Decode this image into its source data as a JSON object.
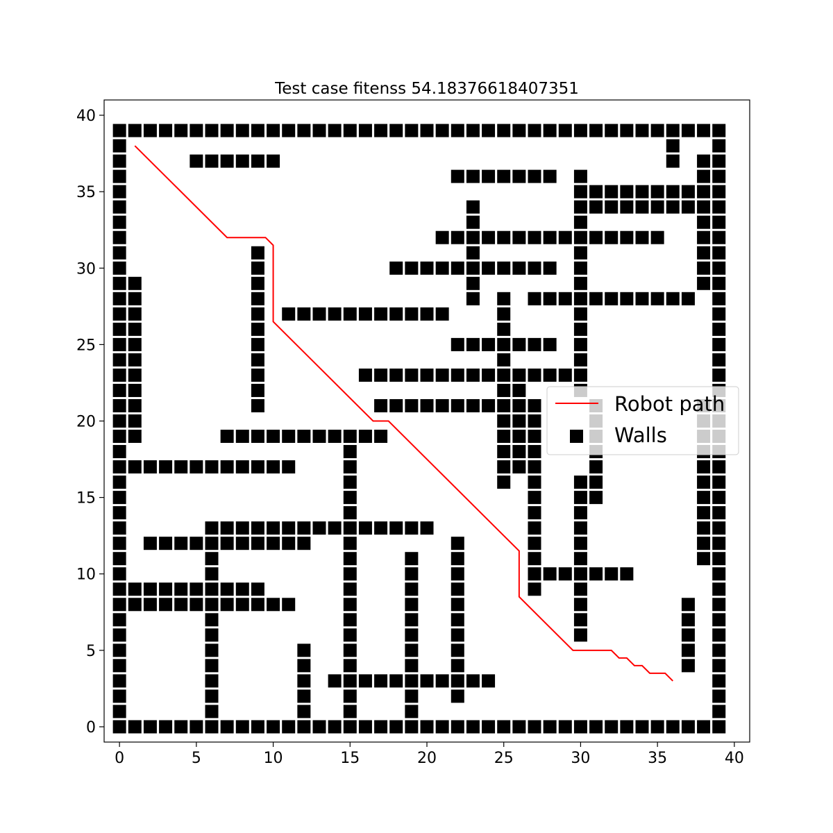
{
  "chart_data": {
    "type": "scatter",
    "title": "Test case fitenss 54.18376618407351",
    "xlabel": "",
    "ylabel": "",
    "xlim": [
      -1,
      41
    ],
    "ylim": [
      -1,
      41
    ],
    "xticks": [
      0,
      5,
      10,
      15,
      20,
      25,
      30,
      35,
      40
    ],
    "yticks": [
      0,
      5,
      10,
      15,
      20,
      25,
      30,
      35,
      40
    ],
    "grid": false,
    "legend_position": "center-right",
    "colors": {
      "path": "#ff0000",
      "walls": "#000000"
    },
    "series": [
      {
        "name": "Robot path",
        "kind": "line",
        "x": [
          1,
          7,
          9.5,
          10,
          10,
          16.5,
          17.5,
          26,
          26,
          29.5,
          32,
          32.5,
          33,
          33.5,
          34,
          34.5,
          35.5,
          36
        ],
        "y": [
          38,
          32,
          32,
          31.5,
          26.5,
          20,
          20,
          11.5,
          8.5,
          5,
          5,
          4.5,
          4.5,
          4,
          4,
          3.5,
          3.5,
          3
        ]
      },
      {
        "name": "Walls",
        "kind": "scatter",
        "marker": "square",
        "rows": [
          {
            "y": 39,
            "x": [
              [
                0,
                39
              ]
            ]
          },
          {
            "y": 38,
            "x": [
              0,
              36,
              39
            ]
          },
          {
            "y": 37,
            "x": [
              0,
              [
                5,
                10
              ],
              36,
              38,
              39
            ]
          },
          {
            "y": 36,
            "x": [
              0,
              [
                22,
                28
              ],
              30,
              38,
              39
            ]
          },
          {
            "y": 35,
            "x": [
              0,
              [
                30,
                39
              ]
            ]
          },
          {
            "y": 34,
            "x": [
              0,
              23,
              [
                30,
                37
              ],
              38,
              39
            ]
          },
          {
            "y": 33,
            "x": [
              0,
              23,
              30,
              38,
              39
            ]
          },
          {
            "y": 32,
            "x": [
              0,
              [
                21,
                35
              ],
              38,
              39
            ]
          },
          {
            "y": 31,
            "x": [
              0,
              9,
              23,
              30,
              38,
              39
            ]
          },
          {
            "y": 30,
            "x": [
              0,
              9,
              [
                18,
                28
              ],
              30,
              38,
              39
            ]
          },
          {
            "y": 29,
            "x": [
              0,
              1,
              9,
              23,
              30,
              38,
              39
            ]
          },
          {
            "y": 28,
            "x": [
              0,
              1,
              9,
              23,
              25,
              [
                27,
                37
              ],
              39
            ]
          },
          {
            "y": 27,
            "x": [
              0,
              1,
              9,
              [
                11,
                21
              ],
              25,
              30,
              39
            ]
          },
          {
            "y": 26,
            "x": [
              0,
              1,
              9,
              25,
              30,
              39
            ]
          },
          {
            "y": 25,
            "x": [
              0,
              1,
              9,
              [
                22,
                28
              ],
              30,
              39
            ]
          },
          {
            "y": 24,
            "x": [
              0,
              1,
              9,
              25,
              30,
              39
            ]
          },
          {
            "y": 23,
            "x": [
              0,
              1,
              9,
              [
                16,
                30
              ],
              39
            ]
          },
          {
            "y": 22,
            "x": [
              0,
              1,
              9,
              25,
              26,
              30,
              39
            ]
          },
          {
            "y": 21,
            "x": [
              0,
              1,
              9,
              [
                17,
                27
              ],
              31,
              38,
              39
            ]
          },
          {
            "y": 20,
            "x": [
              0,
              1,
              25,
              26,
              27,
              31,
              38,
              39
            ]
          },
          {
            "y": 19,
            "x": [
              0,
              1,
              [
                7,
                17
              ],
              25,
              26,
              27,
              31,
              38,
              39
            ]
          },
          {
            "y": 18,
            "x": [
              0,
              15,
              25,
              26,
              27,
              31,
              38,
              39
            ]
          },
          {
            "y": 17,
            "x": [
              0,
              [
                1,
                11
              ],
              15,
              25,
              26,
              27,
              31,
              38,
              39
            ]
          },
          {
            "y": 16,
            "x": [
              0,
              15,
              25,
              27,
              30,
              31,
              38,
              39
            ]
          },
          {
            "y": 15,
            "x": [
              0,
              15,
              27,
              30,
              31,
              38,
              39
            ]
          },
          {
            "y": 14,
            "x": [
              0,
              15,
              27,
              30,
              38,
              39
            ]
          },
          {
            "y": 13,
            "x": [
              0,
              [
                6,
                20
              ],
              27,
              30,
              38,
              39
            ]
          },
          {
            "y": 12,
            "x": [
              0,
              [
                2,
                12
              ],
              15,
              22,
              27,
              30,
              38,
              39
            ]
          },
          {
            "y": 11,
            "x": [
              0,
              6,
              15,
              19,
              22,
              27,
              30,
              38,
              39
            ]
          },
          {
            "y": 10,
            "x": [
              0,
              6,
              15,
              19,
              22,
              [
                27,
                33
              ],
              39
            ]
          },
          {
            "y": 9,
            "x": [
              0,
              [
                1,
                9
              ],
              15,
              19,
              22,
              27,
              30,
              39
            ]
          },
          {
            "y": 8,
            "x": [
              0,
              [
                1,
                11
              ],
              15,
              19,
              22,
              30,
              37,
              39
            ]
          },
          {
            "y": 7,
            "x": [
              0,
              6,
              15,
              19,
              22,
              30,
              37,
              39
            ]
          },
          {
            "y": 6,
            "x": [
              0,
              6,
              15,
              19,
              22,
              30,
              37,
              39
            ]
          },
          {
            "y": 5,
            "x": [
              0,
              6,
              12,
              15,
              19,
              22,
              37,
              39
            ]
          },
          {
            "y": 4,
            "x": [
              0,
              6,
              12,
              15,
              19,
              22,
              37,
              39
            ]
          },
          {
            "y": 3,
            "x": [
              0,
              6,
              12,
              [
                14,
                24
              ],
              39
            ]
          },
          {
            "y": 2,
            "x": [
              0,
              6,
              12,
              15,
              19,
              22,
              39
            ]
          },
          {
            "y": 1,
            "x": [
              0,
              6,
              12,
              15,
              19,
              39
            ]
          },
          {
            "y": 0,
            "x": [
              [
                0,
                39
              ]
            ]
          }
        ]
      }
    ]
  }
}
